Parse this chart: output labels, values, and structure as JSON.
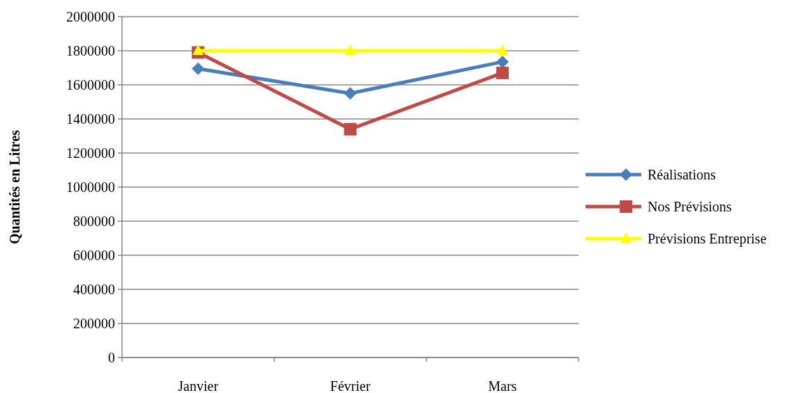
{
  "chart_data": {
    "type": "line",
    "ylabel": "Quantités en Litres",
    "categories": [
      "Janvier",
      "Février",
      "Mars"
    ],
    "ylim": [
      0,
      2000000
    ],
    "yticks": [
      0,
      200000,
      400000,
      600000,
      800000,
      1000000,
      1200000,
      1400000,
      1600000,
      1800000,
      2000000
    ],
    "grid": "y",
    "legend": "right",
    "series": [
      {
        "name": "Réalisations",
        "color": "#4a7ebb",
        "marker": "diamond",
        "values": [
          1695000,
          1550000,
          1735000
        ]
      },
      {
        "name": "Nos Prévisions",
        "color": "#be4b48",
        "marker": "square",
        "values": [
          1790000,
          1340000,
          1670000
        ]
      },
      {
        "name": "Prévisions Entreprise",
        "color": "#ffff00",
        "marker": "triangle",
        "values": [
          1800000,
          1800000,
          1800000
        ]
      }
    ]
  }
}
